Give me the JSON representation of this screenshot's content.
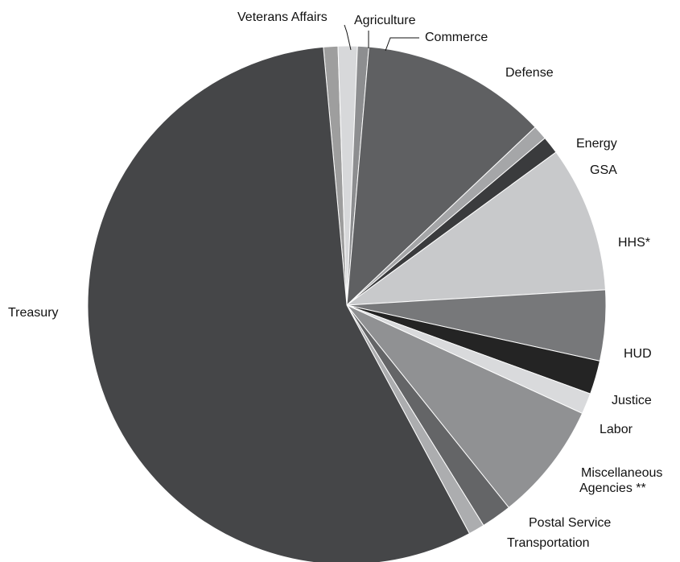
{
  "chart_data": {
    "type": "pie",
    "title": "",
    "slices": [
      {
        "label": "Veterans Affairs",
        "value": 0.9,
        "color": "#9e9e9e"
      },
      {
        "label": "Agriculture",
        "value": 1.2,
        "color": "#d7d8da"
      },
      {
        "label": "Commerce",
        "value": 0.7,
        "color": "#8d8e90"
      },
      {
        "label": "Defense",
        "value": 11.6,
        "color": "#5f6062"
      },
      {
        "label": "Energy",
        "value": 0.9,
        "color": "#a5a6a8"
      },
      {
        "label": "GSA",
        "value": 1.1,
        "color": "#3a3b3d"
      },
      {
        "label": "HHS*",
        "value": 9.1,
        "color": "#c8c9cb"
      },
      {
        "label": "HUD",
        "value": 4.4,
        "color": "#77787a"
      },
      {
        "label": "Justice",
        "value": 2.1,
        "color": "#242424"
      },
      {
        "label": "Labor",
        "value": 1.3,
        "color": "#d9dadc"
      },
      {
        "label": "Miscellaneous Agencies **",
        "value": 7.4,
        "color": "#909193"
      },
      {
        "label": "Postal Service",
        "value": 1.9,
        "color": "#646567"
      },
      {
        "label": "Transportation",
        "value": 1.0,
        "color": "#acadaf"
      },
      {
        "label": "Treasury",
        "value": 56.4,
        "color": "#454648"
      }
    ]
  }
}
